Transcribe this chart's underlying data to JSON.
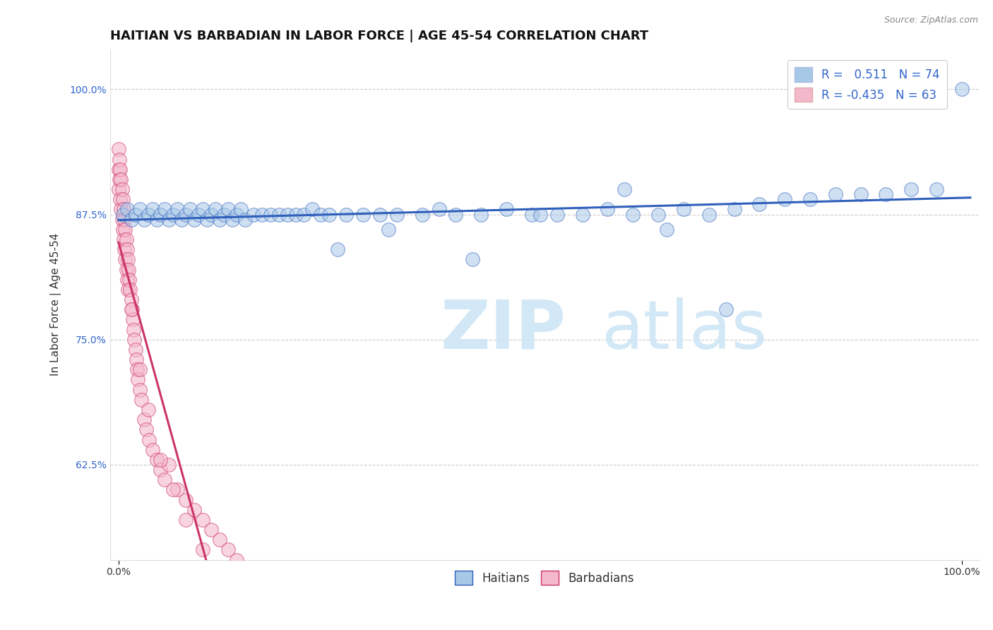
{
  "title": "HAITIAN VS BARBADIAN IN LABOR FORCE | AGE 45-54 CORRELATION CHART",
  "source": "Source: ZipAtlas.com",
  "ylabel": "In Labor Force | Age 45-54",
  "yticks": [
    0.625,
    0.75,
    0.875,
    1.0
  ],
  "yticklabels": [
    "62.5%",
    "75.0%",
    "87.5%",
    "100.0%"
  ],
  "xlim_min": -0.01,
  "xlim_max": 1.02,
  "ylim_min": 0.53,
  "ylim_max": 1.04,
  "background_color": "#ffffff",
  "grid_color": "#cccccc",
  "blue_color": "#a8c8e8",
  "pink_color": "#f4b8cc",
  "blue_line_color": "#3060bb",
  "pink_line_color": "#cc3366",
  "title_fontsize": 13,
  "axis_label_fontsize": 11,
  "tick_fontsize": 10,
  "legend_fontsize": 12,
  "haitians_x": [
    0.005,
    0.01,
    0.015,
    0.02,
    0.025,
    0.03,
    0.035,
    0.04,
    0.045,
    0.05,
    0.055,
    0.06,
    0.065,
    0.07,
    0.075,
    0.08,
    0.085,
    0.09,
    0.095,
    0.1,
    0.105,
    0.11,
    0.115,
    0.12,
    0.125,
    0.13,
    0.135,
    0.14,
    0.145,
    0.15,
    0.16,
    0.17,
    0.18,
    0.19,
    0.2,
    0.21,
    0.22,
    0.23,
    0.24,
    0.25,
    0.27,
    0.29,
    0.31,
    0.33,
    0.36,
    0.38,
    0.4,
    0.43,
    0.46,
    0.49,
    0.52,
    0.55,
    0.58,
    0.61,
    0.64,
    0.67,
    0.7,
    0.73,
    0.76,
    0.79,
    0.82,
    0.85,
    0.88,
    0.91,
    0.94,
    0.97,
    1.0,
    0.26,
    0.32,
    0.42,
    0.5,
    0.6,
    0.65,
    0.72
  ],
  "haitians_y": [
    0.875,
    0.88,
    0.87,
    0.875,
    0.88,
    0.87,
    0.875,
    0.88,
    0.87,
    0.875,
    0.88,
    0.87,
    0.875,
    0.88,
    0.87,
    0.875,
    0.88,
    0.87,
    0.875,
    0.88,
    0.87,
    0.875,
    0.88,
    0.87,
    0.875,
    0.88,
    0.87,
    0.875,
    0.88,
    0.87,
    0.875,
    0.875,
    0.875,
    0.875,
    0.875,
    0.875,
    0.875,
    0.88,
    0.875,
    0.875,
    0.875,
    0.875,
    0.875,
    0.875,
    0.875,
    0.88,
    0.875,
    0.875,
    0.88,
    0.875,
    0.875,
    0.875,
    0.88,
    0.875,
    0.875,
    0.88,
    0.875,
    0.88,
    0.885,
    0.89,
    0.89,
    0.895,
    0.895,
    0.895,
    0.9,
    0.9,
    1.0,
    0.84,
    0.86,
    0.83,
    0.875,
    0.9,
    0.86,
    0.78
  ],
  "barbadians_x": [
    0.0,
    0.0,
    0.0,
    0.001,
    0.001,
    0.002,
    0.002,
    0.003,
    0.003,
    0.004,
    0.004,
    0.005,
    0.005,
    0.006,
    0.006,
    0.007,
    0.007,
    0.008,
    0.008,
    0.009,
    0.009,
    0.01,
    0.01,
    0.011,
    0.011,
    0.012,
    0.013,
    0.014,
    0.015,
    0.016,
    0.017,
    0.018,
    0.019,
    0.02,
    0.021,
    0.022,
    0.023,
    0.025,
    0.027,
    0.03,
    0.033,
    0.036,
    0.04,
    0.045,
    0.05,
    0.055,
    0.06,
    0.07,
    0.08,
    0.09,
    0.1,
    0.11,
    0.12,
    0.13,
    0.14,
    0.015,
    0.025,
    0.035,
    0.05,
    0.065,
    0.08,
    0.1,
    0.12
  ],
  "barbadians_y": [
    0.94,
    0.92,
    0.9,
    0.93,
    0.91,
    0.92,
    0.89,
    0.91,
    0.88,
    0.9,
    0.87,
    0.89,
    0.86,
    0.88,
    0.85,
    0.87,
    0.84,
    0.86,
    0.83,
    0.85,
    0.82,
    0.84,
    0.81,
    0.83,
    0.8,
    0.82,
    0.81,
    0.8,
    0.79,
    0.78,
    0.77,
    0.76,
    0.75,
    0.74,
    0.73,
    0.72,
    0.71,
    0.7,
    0.69,
    0.67,
    0.66,
    0.65,
    0.64,
    0.63,
    0.62,
    0.61,
    0.625,
    0.6,
    0.59,
    0.58,
    0.57,
    0.56,
    0.55,
    0.54,
    0.53,
    0.78,
    0.72,
    0.68,
    0.63,
    0.6,
    0.57,
    0.54,
    0.52
  ]
}
